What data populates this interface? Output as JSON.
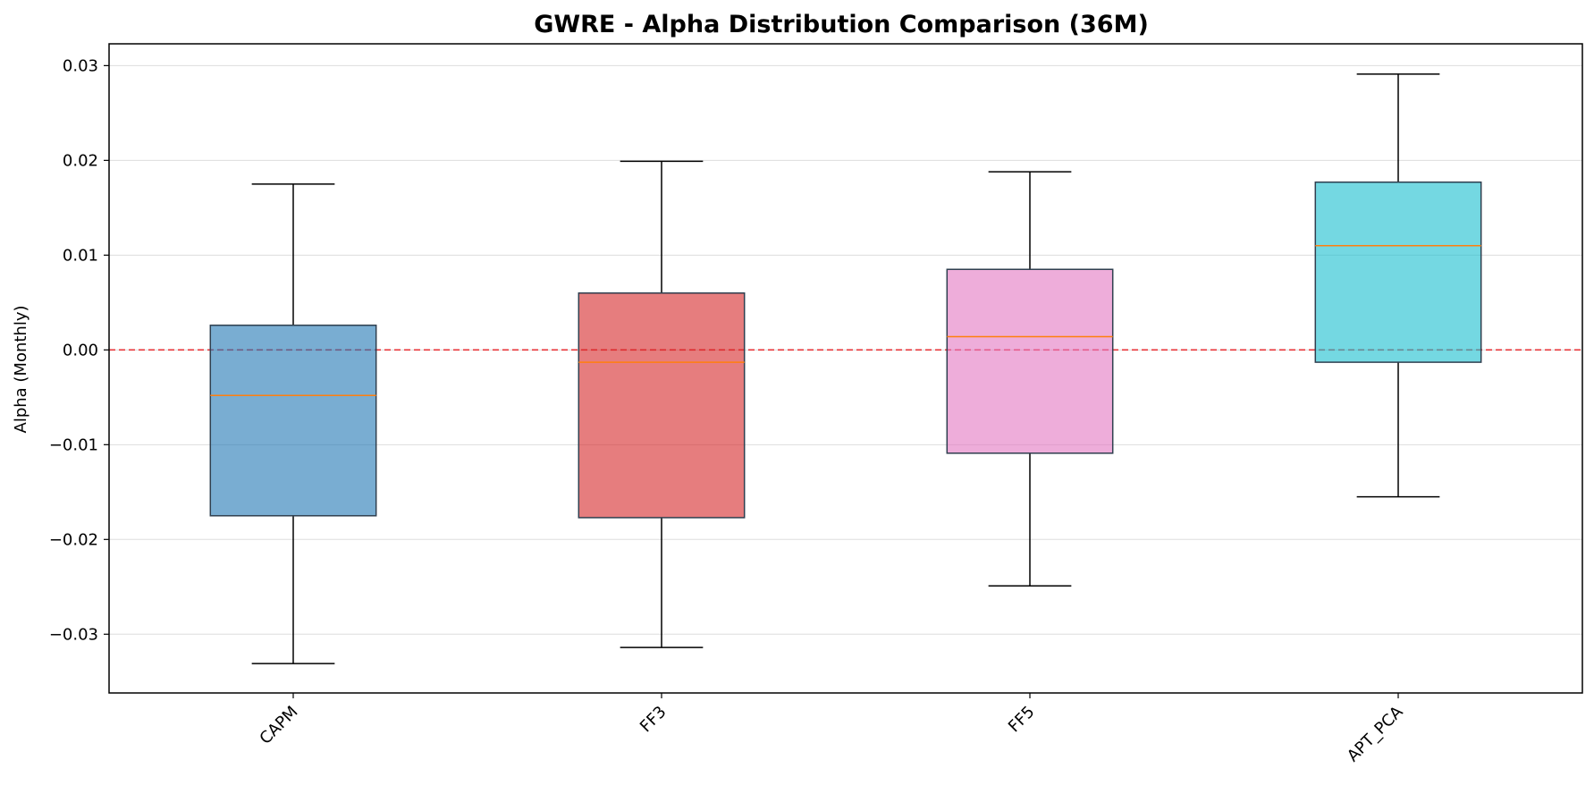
{
  "chart_data": {
    "type": "box",
    "title": "GWRE - Alpha Distribution Comparison (36M)",
    "xlabel": "",
    "ylabel": "Alpha (Monthly)",
    "ylim": [
      -0.0362,
      0.0323
    ],
    "yticks": [
      0.03,
      0.02,
      0.01,
      0.0,
      -0.01,
      -0.02,
      -0.03
    ],
    "ytick_labels": [
      "0.03",
      "0.02",
      "0.01",
      "0.00",
      "−0.01",
      "−0.02",
      "−0.03"
    ],
    "categories": [
      "CAPM",
      "FF3",
      "FF5",
      "APT_PCA"
    ],
    "series": [
      {
        "category": "CAPM",
        "whisker_low": -0.0331,
        "q1": -0.0175,
        "median": -0.0048,
        "q3": 0.0026,
        "whisker_high": 0.0175,
        "color": "#1f77b4"
      },
      {
        "category": "FF3",
        "whisker_low": -0.0314,
        "q1": -0.0177,
        "median": -0.0013,
        "q3": 0.006,
        "whisker_high": 0.0199,
        "color": "#d62728"
      },
      {
        "category": "FF5",
        "whisker_low": -0.0249,
        "q1": -0.0109,
        "median": 0.0014,
        "q3": 0.0085,
        "whisker_high": 0.0188,
        "color": "#e377c2"
      },
      {
        "category": "APT_PCA",
        "whisker_low": -0.0155,
        "q1": -0.0013,
        "median": 0.011,
        "q3": 0.0177,
        "whisker_high": 0.0291,
        "color": "#17becf"
      }
    ],
    "reference_line": {
      "y": 0.0,
      "style": "dashed",
      "color": "#e8363b"
    },
    "median_color": "#ff7f0e",
    "grid": "horizontal",
    "legend": "none"
  }
}
